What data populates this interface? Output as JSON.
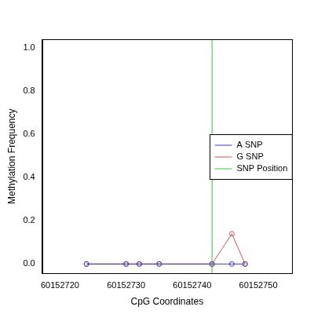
{
  "chart_data": {
    "type": "line",
    "x_label": "CpG Coordinates",
    "y_label": "Methylation Frequency",
    "xlim": [
      60152717.3,
      60152755.1
    ],
    "xticks": [
      60152720,
      60152730,
      60152740,
      60152750
    ],
    "ylim": [
      -0.044,
      1.04
    ],
    "yticks": [
      {
        "value": 0,
        "label": "0.0"
      },
      {
        "value": 0.2,
        "label": "0.2"
      },
      {
        "value": 0.4,
        "label": "0.4"
      },
      {
        "value": 0.6,
        "label": "0.6"
      },
      {
        "value": 0.8,
        "label": "0.8"
      },
      {
        "value": 1.0,
        "label": "1.0"
      }
    ],
    "grid": false,
    "legend": "right",
    "series": [
      {
        "name": "A SNP",
        "color": "#3b3bb3",
        "marker": "circle",
        "line_style": "solid",
        "x": [
          60152724,
          60152730,
          60152732,
          60152735,
          60152743,
          60152746,
          60152748
        ],
        "values": [
          0,
          0,
          0,
          0,
          0,
          0,
          0
        ]
      },
      {
        "name": "G SNP",
        "color": "#d9534f",
        "marker": "circle",
        "line_style": "solid",
        "x": [
          60152724,
          60152730,
          60152732,
          60152735,
          60152743,
          60152746,
          60152748
        ],
        "values": [
          0,
          0,
          0,
          0,
          0,
          0.14,
          0
        ]
      },
      {
        "name": "SNP Position",
        "color": "#33cc33",
        "marker": "none",
        "line_style": "solid",
        "x": [
          60152743,
          60152743
        ],
        "values": [
          -0.044,
          1.04
        ]
      }
    ]
  }
}
